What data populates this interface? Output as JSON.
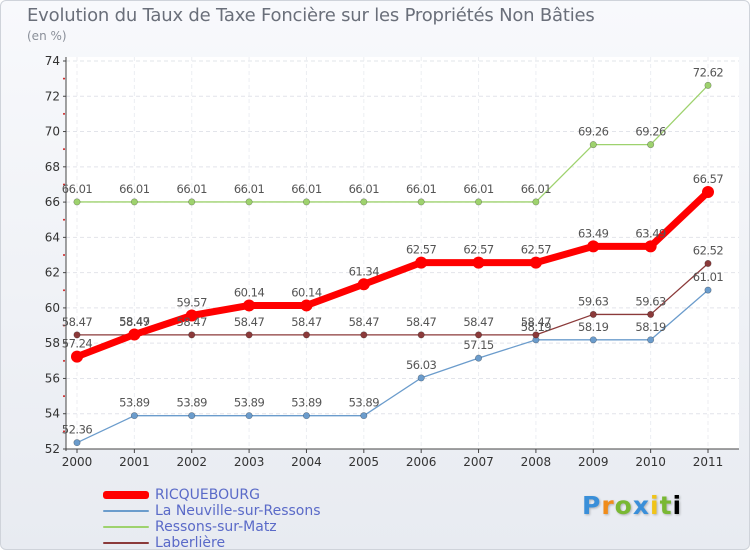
{
  "chart_data": {
    "type": "line",
    "title": "Evolution du Taux de Taxe Foncière sur les Propriétés Non Bâties",
    "subtitle": "(en %)",
    "xlabel": "",
    "ylabel": "",
    "x": [
      "2000",
      "2001",
      "2002",
      "2003",
      "2004",
      "2005",
      "2006",
      "2007",
      "2008",
      "2009",
      "2010",
      "2011"
    ],
    "ylim": [
      52,
      74
    ],
    "yticks": [
      "52",
      "54",
      "56",
      "58",
      "60",
      "62",
      "64",
      "66",
      "68",
      "70",
      "72",
      "74"
    ],
    "series": [
      {
        "name": "RICQUEBOURG",
        "color": "#ff0000",
        "values": [
          57.24,
          58.49,
          59.57,
          60.14,
          60.14,
          61.34,
          62.57,
          62.57,
          62.57,
          63.49,
          63.49,
          66.57
        ],
        "labels": [
          "57.24",
          "58.49",
          "59.57",
          "60.14",
          "60.14",
          "61.34",
          "62.57",
          "62.57",
          "62.57",
          "63.49",
          "63.49",
          "66.57"
        ]
      },
      {
        "name": "La Neuville-sur-Ressons",
        "color": "#6b9ccc",
        "values": [
          52.36,
          53.89,
          53.89,
          53.89,
          53.89,
          53.89,
          56.03,
          57.15,
          58.19,
          58.19,
          58.19,
          61.01
        ],
        "labels": [
          "52.36",
          "53.89",
          "53.89",
          "53.89",
          "53.89",
          "53.89",
          "56.03",
          "57.15",
          "58.19",
          "58.19",
          "58.19",
          "61.01"
        ]
      },
      {
        "name": "Ressons-sur-Matz",
        "color": "#9ed26e",
        "values": [
          66.01,
          66.01,
          66.01,
          66.01,
          66.01,
          66.01,
          66.01,
          66.01,
          66.01,
          69.26,
          69.26,
          72.62
        ],
        "labels": [
          "66.01",
          "66.01",
          "66.01",
          "66.01",
          "66.01",
          "66.01",
          "66.01",
          "66.01",
          "66.01",
          "69.26",
          "69.26",
          "72.62"
        ]
      },
      {
        "name": "Laberlière",
        "color": "#8b3a3a",
        "values": [
          58.47,
          58.47,
          58.47,
          58.47,
          58.47,
          58.47,
          58.47,
          58.47,
          58.47,
          59.63,
          59.63,
          62.52
        ],
        "labels": [
          "58.47",
          "58.47",
          "58.47",
          "58.47",
          "58.47",
          "58.47",
          "58.47",
          "58.47",
          "58.47",
          "59.63",
          "59.63",
          "62.52"
        ]
      }
    ]
  },
  "logo": {
    "letters": [
      "P",
      "r",
      "o",
      "x",
      "i",
      "t",
      "i"
    ]
  }
}
